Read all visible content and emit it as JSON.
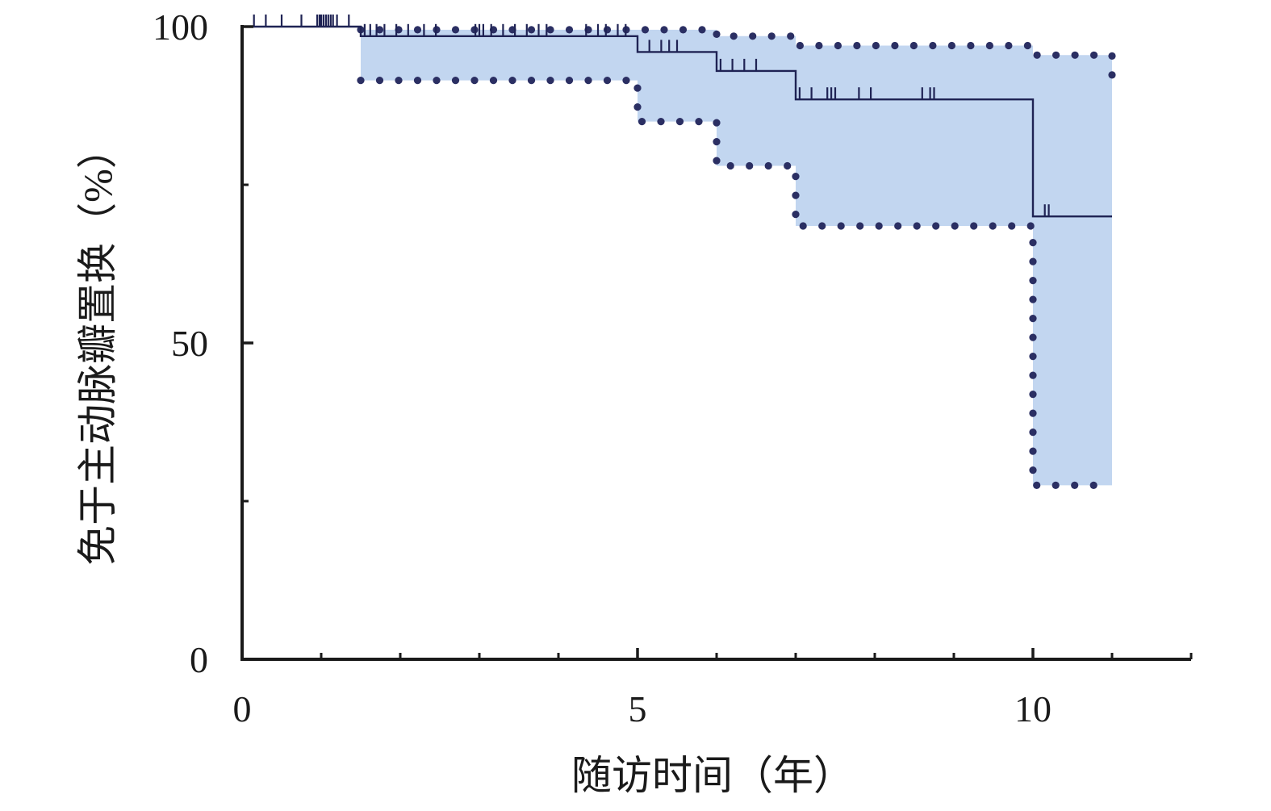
{
  "chart_data": {
    "type": "line",
    "subtype": "kaplan-meier-survival-curve",
    "title": "",
    "xlabel": "随访时间（年）",
    "ylabel": "免于主动脉瓣置换（%）",
    "xlim": [
      0,
      12
    ],
    "ylim": [
      0,
      100
    ],
    "x_tick_labels": [
      {
        "value": 0,
        "label": "0"
      },
      {
        "value": 5,
        "label": "5"
      },
      {
        "value": 10,
        "label": "10"
      }
    ],
    "x_minor_ticks": [
      1,
      2,
      3,
      4,
      6,
      7,
      8,
      9,
      11,
      12
    ],
    "y_tick_labels": [
      {
        "value": 0,
        "label": "0"
      },
      {
        "value": 50,
        "label": "50"
      },
      {
        "value": 100,
        "label": "100"
      }
    ],
    "y_minor_ticks": [
      25,
      75
    ],
    "grid": false,
    "colors": {
      "survival_line": "#1f2354",
      "ci_fill": "#c2d6f0",
      "ci_dots": "#2b2f63",
      "axis": "#1a1a1a"
    },
    "survival": {
      "x": [
        0,
        1.5,
        5,
        6,
        7,
        10,
        11
      ],
      "y": [
        100,
        98.5,
        96,
        93,
        88.5,
        70,
        70
      ]
    },
    "ci_upper": {
      "x": [
        1.5,
        5,
        6,
        7,
        10,
        11
      ],
      "y": [
        99.5,
        99.5,
        98.5,
        97,
        95.5,
        91.5
      ]
    },
    "ci_lower": {
      "x": [
        1.5,
        5,
        6,
        7,
        10,
        11
      ],
      "y": [
        91.5,
        85,
        78,
        68.5,
        27.5,
        27.5
      ]
    },
    "censored": [
      0.15,
      0.3,
      0.5,
      0.75,
      0.95,
      0.98,
      1.0,
      1.03,
      1.06,
      1.09,
      1.12,
      1.15,
      1.2,
      1.35,
      1.55,
      1.62,
      1.7,
      1.8,
      1.95,
      2.1,
      2.3,
      2.45,
      2.95,
      3.0,
      3.05,
      3.15,
      3.3,
      3.45,
      3.6,
      3.75,
      3.85,
      4.35,
      4.5,
      4.6,
      4.75,
      4.85,
      5.15,
      5.3,
      5.4,
      5.5,
      6.05,
      6.2,
      6.35,
      6.5,
      7.05,
      7.2,
      7.4,
      7.45,
      7.5,
      7.8,
      7.95,
      8.6,
      8.7,
      8.75,
      10.15,
      10.2
    ]
  }
}
